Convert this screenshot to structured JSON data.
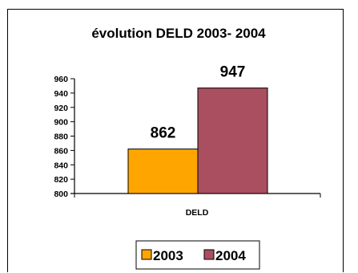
{
  "chart_data": {
    "type": "bar",
    "title": "évolution DELD 2003- 2004",
    "categories": [
      "DELD"
    ],
    "series": [
      {
        "name": "2003",
        "values": [
          862
        ],
        "color": "#FFA500"
      },
      {
        "name": "2004",
        "values": [
          947
        ],
        "color": "#A94F5F"
      }
    ],
    "yticks": [
      "960",
      "940",
      "920",
      "900",
      "880",
      "860",
      "840",
      "820",
      "800"
    ],
    "ylim": [
      800,
      960
    ],
    "ystep": 20,
    "grid": false,
    "data_labels": true,
    "legend_position": "bottom"
  }
}
